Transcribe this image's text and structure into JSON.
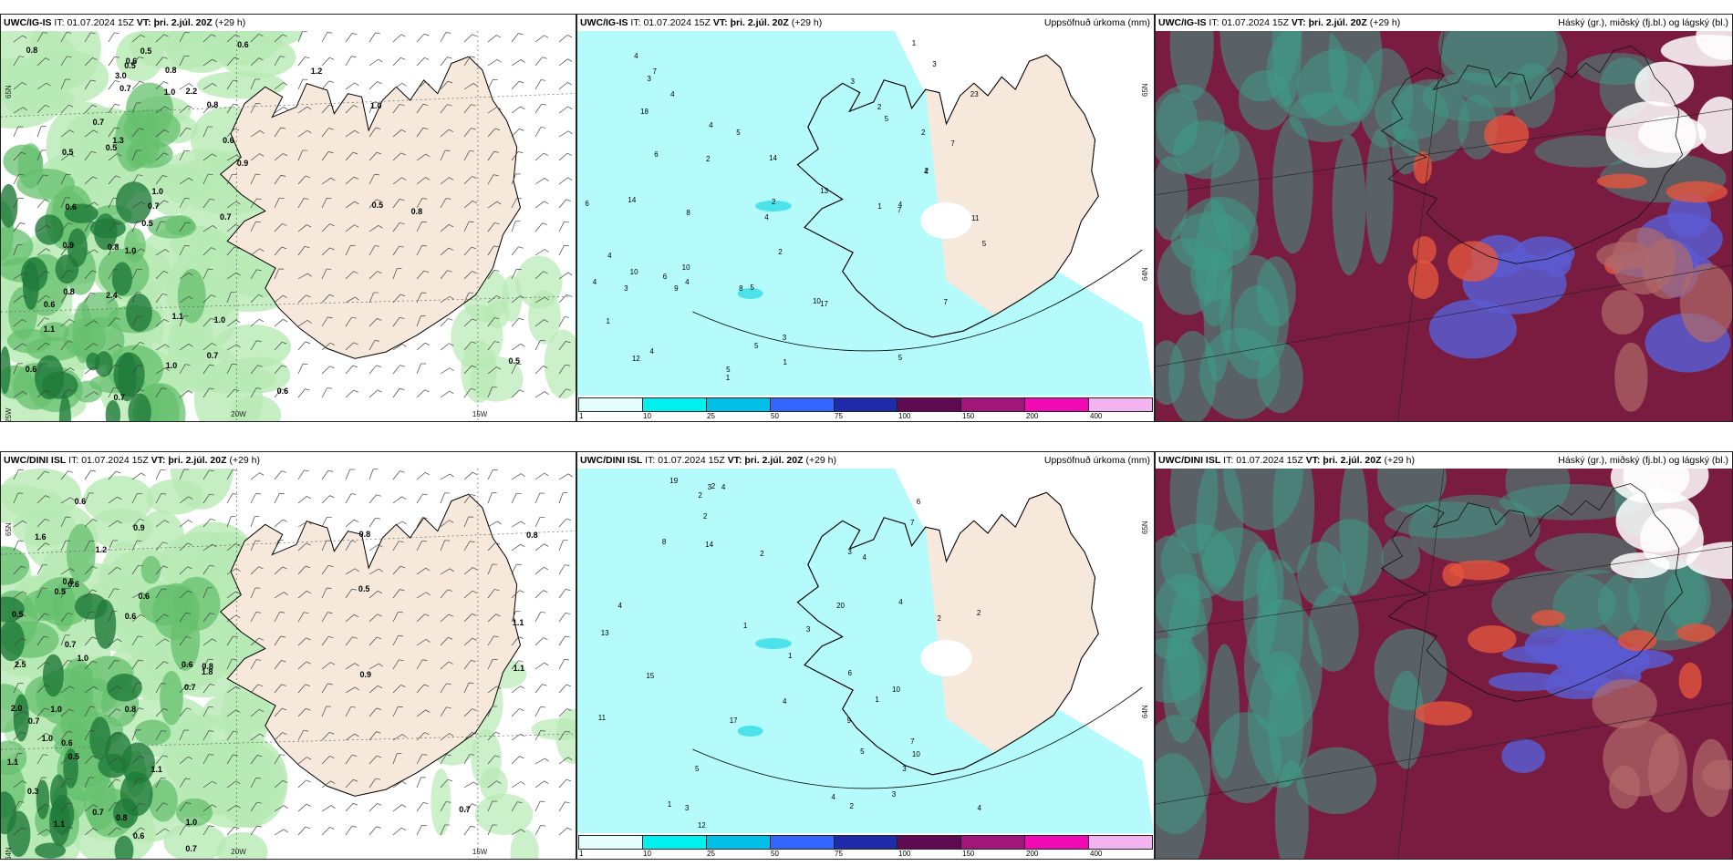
{
  "colors": {
    "land": "#f6e9dc",
    "sea_precip": "#b6fbfb",
    "green_light": "#b6eab4",
    "green_mid": "#66c06d",
    "green_dark": "#1f7a3a",
    "cloud_high": "#7a1c3f",
    "cloud_mid": "#3e9a86",
    "cloud_low": "#5a5ad0",
    "coast": "#000000"
  },
  "colorbar": {
    "colors": [
      "#e4fdfd",
      "#00f0f0",
      "#00c0e8",
      "#3366ff",
      "#1e2aa8",
      "#5e0a52",
      "#a0167a",
      "#f00ab4",
      "#f2b3f0"
    ],
    "ticks": [
      "1",
      "10",
      "25",
      "50",
      "75",
      "100",
      "150",
      "200",
      "400"
    ]
  },
  "panels": [
    {
      "model": "UWC/IG-IS",
      "it_label": "IT:",
      "it_value": "01.07.2024 15Z",
      "vt_label": "VT:",
      "vt_value": "þri. 2.júl. 20Z",
      "lead": "(+29 h)",
      "title_right": "",
      "coords": [
        "65N",
        "20W",
        "15W",
        "25W"
      ],
      "values": [
        "1.0",
        "0.6",
        "0.6",
        "0.5",
        "0.8",
        "0.8",
        "0.5",
        "0.6",
        "0.7",
        "0.8",
        "1.0",
        "0.9",
        "1.1",
        "1.2",
        "0.7",
        "1.0",
        "1.0",
        "3.0",
        "2.4",
        "0.9",
        "0.5",
        "1.3",
        "2.2",
        "0.5",
        "1.0",
        "0.5",
        "0.7",
        "1.1",
        "0.6",
        "0.7",
        "0.8",
        "0.7",
        "0.6",
        "0.6",
        "1.0",
        "0.8",
        "0.8",
        "0.7",
        "0.6",
        "0.5",
        "0.5"
      ]
    },
    {
      "model": "UWC/IG-IS",
      "it_label": "IT:",
      "it_value": "01.07.2024 15Z",
      "vt_label": "VT:",
      "vt_value": "þri. 2.júl. 20Z",
      "lead": "(+29 h)",
      "title_right": "Uppsöfnuð úrkoma (mm)",
      "coords": [
        "65N",
        "64N"
      ],
      "values": [
        "1",
        "5",
        "4",
        "2",
        "3",
        "5",
        "4",
        "6",
        "5",
        "11",
        "9",
        "4",
        "5",
        "7",
        "12",
        "23",
        "17",
        "14",
        "14",
        "13",
        "10",
        "18",
        "10",
        "7",
        "8",
        "7",
        "5",
        "6",
        "3",
        "2",
        "2",
        "1",
        "1",
        "2",
        "10",
        "2",
        "3",
        "4",
        "4",
        "2",
        "3",
        "4",
        "5",
        "8",
        "3",
        "1",
        "7",
        "4",
        "6",
        "5",
        "4",
        "4",
        "4",
        "1"
      ]
    },
    {
      "model": "UWC/IG-IS",
      "it_label": "IT:",
      "it_value": "01.07.2024 15Z",
      "vt_label": "VT:",
      "vt_value": "þri. 2.júl. 20Z",
      "lead": "(+29 h)",
      "title_right": "Háský (gr.), miðský (fj.bl.) og lágský (bl.)",
      "coords": [],
      "values": []
    },
    {
      "model": "UWC/DINI ISL",
      "it_label": "IT:",
      "it_value": "01.07.2024 15Z",
      "vt_label": "VT:",
      "vt_value": "þri. 2.júl. 20Z",
      "lead": "(+29 h)",
      "title_right": "",
      "coords": [
        "65N",
        "20W",
        "15W",
        "64N"
      ],
      "values": [
        "0.5",
        "0.7",
        "0.6",
        "0.7",
        "0.5",
        "0.7",
        "0.6",
        "1.1",
        "0.8",
        "0.9",
        "1.0",
        "0.6",
        "0.7",
        "0.5",
        "1.1",
        "0.8",
        "1.0",
        "0.6",
        "0.8",
        "1.1",
        "0.5",
        "1.8",
        "1.0",
        "0.8",
        "0.7",
        "0.5",
        "0.6",
        "1.1",
        "1.0",
        "1.2",
        "0.7",
        "0.6",
        "0.8",
        "2.0",
        "0.9",
        "0.3",
        "1.6",
        "2.5",
        "0.6",
        "1.1"
      ]
    },
    {
      "model": "UWC/DINI ISL",
      "it_label": "IT:",
      "it_value": "01.07.2024 15Z",
      "vt_label": "VT:",
      "vt_value": "þri. 2.júl. 20Z",
      "lead": "(+29 h)",
      "title_right": "Uppsöfnuð úrkoma (mm)",
      "coords": [
        "65N",
        "64N"
      ],
      "values": [
        "2",
        "3",
        "4",
        "5",
        "8",
        "9",
        "10",
        "12",
        "20",
        "15",
        "17",
        "11",
        "13",
        "10",
        "19",
        "7",
        "6",
        "4",
        "3",
        "2",
        "1",
        "2",
        "3",
        "4",
        "1",
        "2",
        "5",
        "4",
        "3",
        "2",
        "1",
        "3",
        "4",
        "3",
        "2",
        "4",
        "7",
        "6",
        "14",
        "4",
        "2",
        "1"
      ]
    },
    {
      "model": "UWC/DINI ISL",
      "it_label": "IT:",
      "it_value": "01.07.2024 15Z",
      "vt_label": "VT:",
      "vt_value": "þri. 2.júl. 20Z",
      "lead": "(+29 h)",
      "title_right": "Háský (gr.), miðský (fj.bl.) og lágský (bl.)",
      "coords": [],
      "values": []
    }
  ]
}
